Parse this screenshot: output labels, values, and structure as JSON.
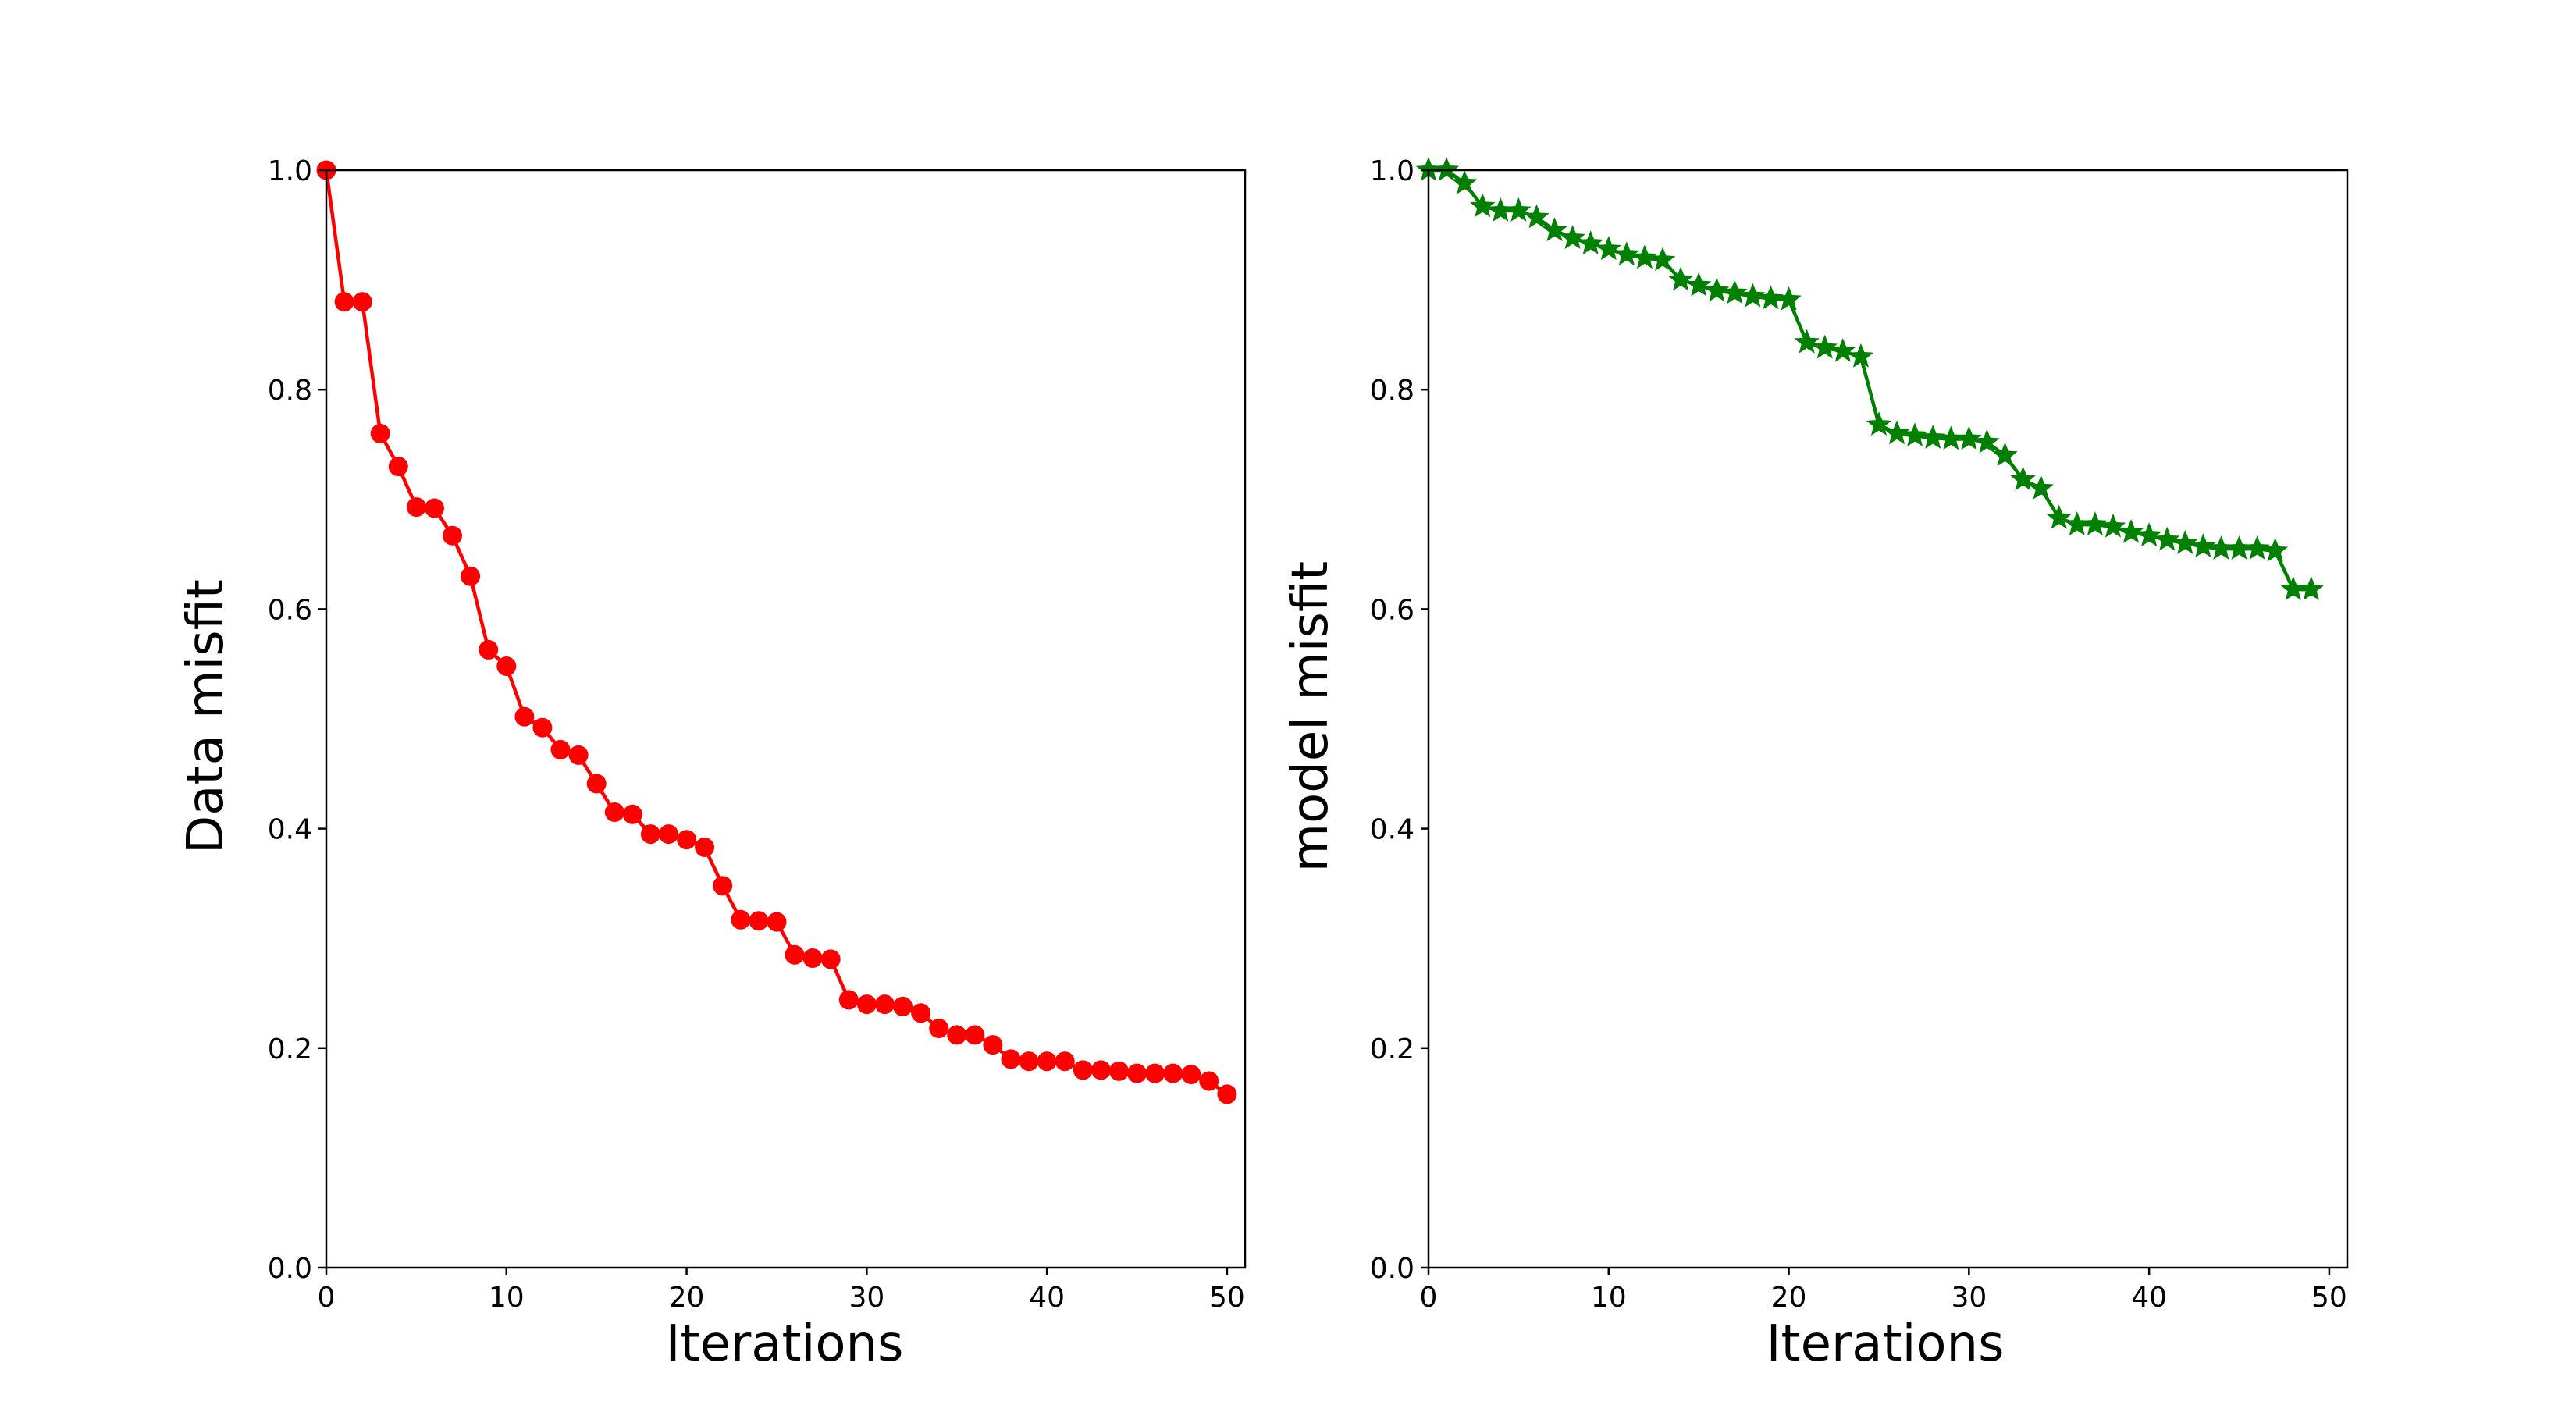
{
  "chart_data": [
    {
      "type": "line",
      "xlabel": "Iterations",
      "ylabel": "Data misfit",
      "xlim": [
        0,
        51
      ],
      "ylim": [
        0,
        1.0
      ],
      "xticks": [
        0,
        10,
        20,
        30,
        40,
        50
      ],
      "yticks": [
        0.0,
        0.2,
        0.4,
        0.6,
        0.8,
        1.0
      ],
      "xtick_labels": [
        "0",
        "10",
        "20",
        "30",
        "40",
        "50"
      ],
      "ytick_labels": [
        "0.0",
        "0.2",
        "0.4",
        "0.6",
        "0.8",
        "1.0"
      ],
      "grid": false,
      "series": [
        {
          "color": "#ff0000",
          "marker": "circle",
          "x": [
            0,
            1,
            2,
            3,
            4,
            5,
            6,
            7,
            8,
            9,
            10,
            11,
            12,
            13,
            14,
            15,
            16,
            17,
            18,
            19,
            20,
            21,
            22,
            23,
            24,
            25,
            26,
            27,
            28,
            29,
            30,
            31,
            32,
            33,
            34,
            35,
            36,
            37,
            38,
            39,
            40,
            41,
            42,
            43,
            44,
            45,
            46,
            47,
            48,
            49,
            50
          ],
          "y": [
            1.0,
            0.88,
            0.88,
            0.76,
            0.73,
            0.693,
            0.692,
            0.667,
            0.63,
            0.563,
            0.548,
            0.502,
            0.492,
            0.472,
            0.467,
            0.441,
            0.415,
            0.413,
            0.395,
            0.395,
            0.39,
            0.383,
            0.348,
            0.317,
            0.316,
            0.315,
            0.285,
            0.282,
            0.281,
            0.244,
            0.24,
            0.24,
            0.238,
            0.232,
            0.218,
            0.212,
            0.212,
            0.203,
            0.19,
            0.188,
            0.188,
            0.188,
            0.18,
            0.18,
            0.179,
            0.177,
            0.177,
            0.177,
            0.176,
            0.17,
            0.158
          ]
        }
      ]
    },
    {
      "type": "line",
      "xlabel": "Iterations",
      "ylabel": "model misfit",
      "xlim": [
        0,
        51
      ],
      "ylim": [
        0,
        1.0
      ],
      "xticks": [
        0,
        10,
        20,
        30,
        40,
        50
      ],
      "yticks": [
        0.0,
        0.2,
        0.4,
        0.6,
        0.8,
        1.0
      ],
      "xtick_labels": [
        "0",
        "10",
        "20",
        "30",
        "40",
        "50"
      ],
      "ytick_labels": [
        "0.0",
        "0.2",
        "0.4",
        "0.6",
        "0.8",
        "1.0"
      ],
      "grid": false,
      "series": [
        {
          "color": "#008000",
          "marker": "star",
          "x": [
            0,
            1,
            2,
            3,
            4,
            5,
            6,
            7,
            8,
            9,
            10,
            11,
            12,
            13,
            14,
            15,
            16,
            17,
            18,
            19,
            20,
            21,
            22,
            23,
            24,
            25,
            26,
            27,
            28,
            29,
            30,
            31,
            32,
            33,
            34,
            35,
            36,
            37,
            38,
            39,
            40,
            41,
            42,
            43,
            44,
            45,
            46,
            47,
            48,
            49
          ],
          "y": [
            1.0,
            1.0,
            0.988,
            0.967,
            0.963,
            0.963,
            0.957,
            0.945,
            0.938,
            0.933,
            0.928,
            0.923,
            0.92,
            0.918,
            0.9,
            0.895,
            0.89,
            0.888,
            0.885,
            0.883,
            0.882,
            0.843,
            0.838,
            0.835,
            0.83,
            0.768,
            0.76,
            0.758,
            0.756,
            0.755,
            0.755,
            0.752,
            0.74,
            0.718,
            0.71,
            0.683,
            0.677,
            0.677,
            0.675,
            0.67,
            0.667,
            0.663,
            0.66,
            0.657,
            0.655,
            0.655,
            0.655,
            0.653,
            0.618,
            0.618
          ]
        }
      ]
    }
  ]
}
